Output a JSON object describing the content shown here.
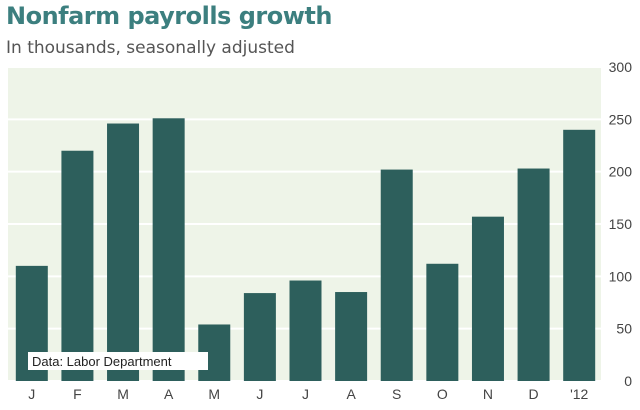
{
  "title": "Nonfarm payrolls growth",
  "subtitle": "In thousands, seasonally adjusted",
  "source": "Data: Labor Department",
  "colors": {
    "bar": "#2d5f5c",
    "plot_bg": "#eef4e8",
    "grid": "#ffffff",
    "title": "#3c7f7f"
  },
  "chart_data": {
    "type": "bar",
    "categories": [
      "J",
      "F",
      "M",
      "A",
      "M",
      "J",
      "J",
      "A",
      "S",
      "O",
      "N",
      "D",
      "'12"
    ],
    "values": [
      110,
      220,
      246,
      251,
      54,
      84,
      96,
      85,
      202,
      112,
      157,
      203,
      240
    ],
    "title": "Nonfarm payrolls growth",
    "subtitle": "In thousands, seasonally adjusted",
    "xlabel": "",
    "ylabel": "",
    "ylim": [
      0,
      300
    ],
    "yticks": [
      0,
      50,
      100,
      150,
      200,
      250,
      300
    ],
    "grid": true,
    "y_axis_side": "right"
  }
}
